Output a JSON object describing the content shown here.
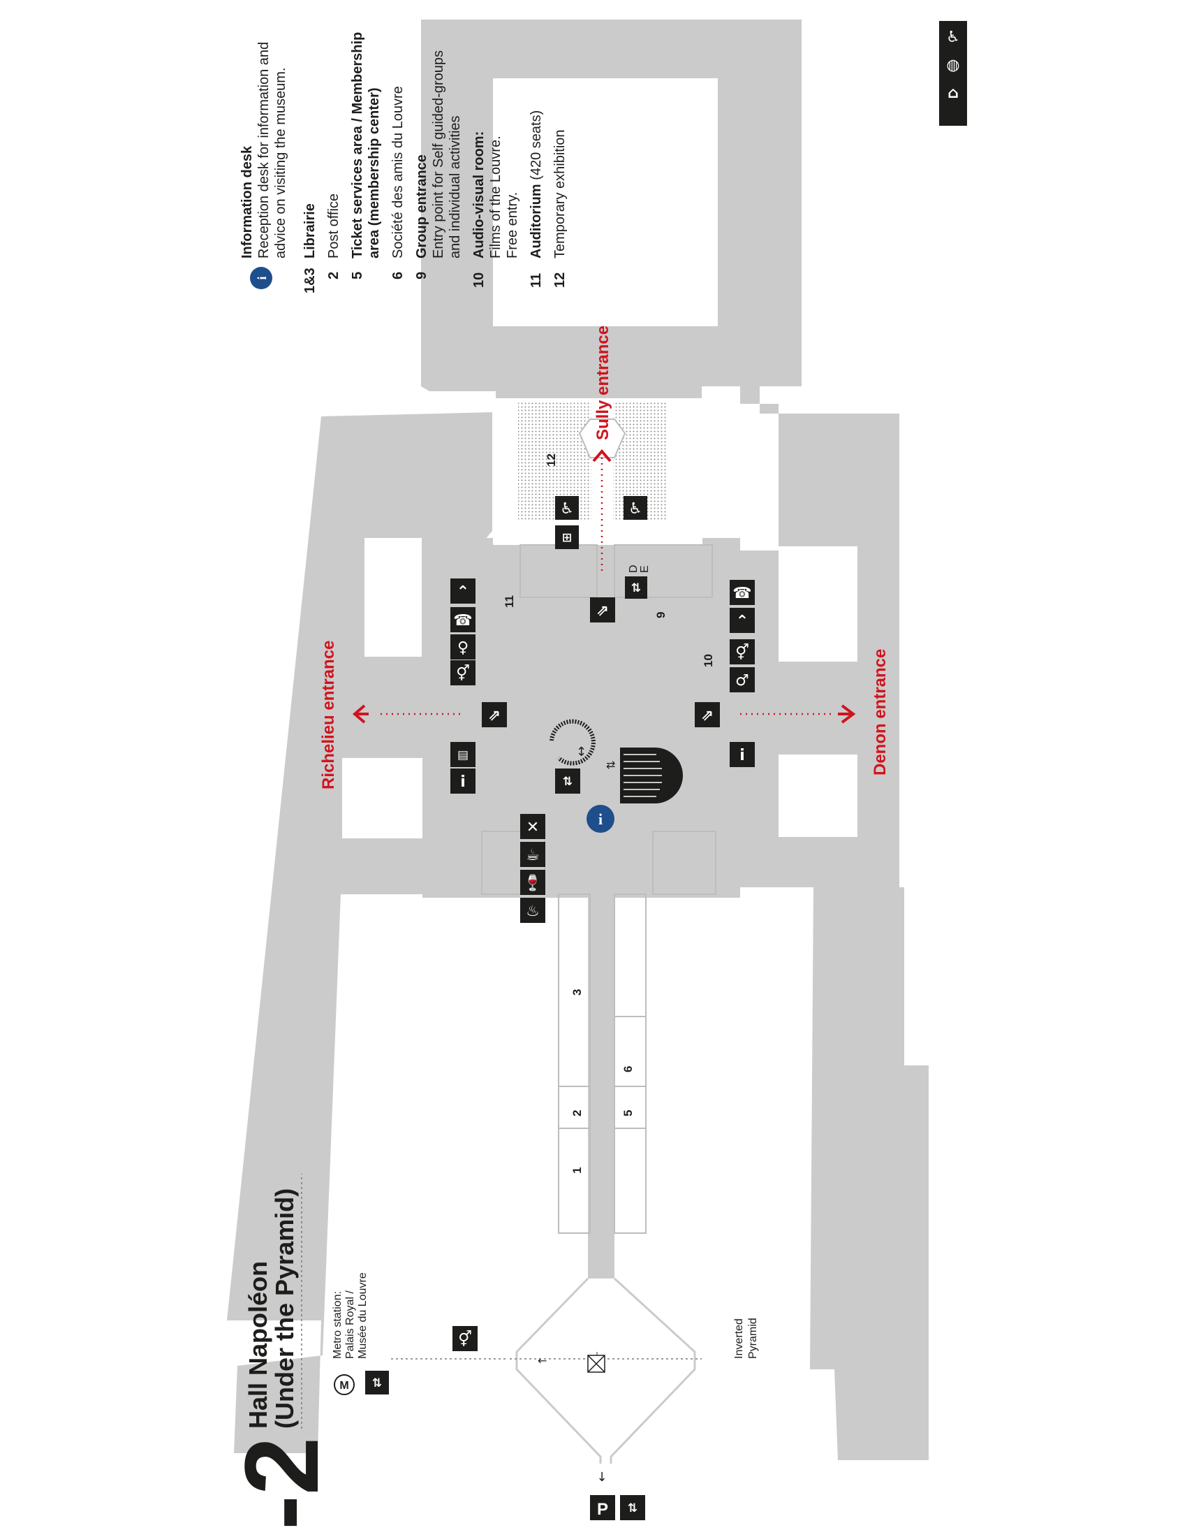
{
  "level": {
    "number": "-2",
    "name": "Hall Napoléon",
    "subtitle": "(Under the Pyramid)"
  },
  "colors": {
    "building": "#cbcbcb",
    "accent_red": "#d0141e",
    "info_blue": "#1f4e8c",
    "icon_dark": "#1d1d1b",
    "exhibition_dots": "#8a8a8a"
  },
  "entrances": {
    "richelieu": "Richelieu entrance",
    "denon": "Denon entrance",
    "sully": "Sully entrance"
  },
  "labels": {
    "metro": "Metro station:",
    "metro_line2": "Palais Royal /",
    "metro_line3": "Musée du Louvre",
    "metro_symbol": "M",
    "inverted_1": "Inverted",
    "inverted_2": "Pyramid",
    "parking": "P",
    "elevator_d": "D",
    "elevator_e": "E",
    "info_symbol": "i"
  },
  "rooms": [
    "1",
    "2",
    "3",
    "5",
    "6",
    "9",
    "10",
    "11",
    "12"
  ],
  "legend": [
    {
      "num": "",
      "title": "Information desk",
      "desc": [
        "Reception desk for information and",
        "advice on visiting the museum."
      ],
      "icon": "info-icon"
    },
    {
      "num": "1&3",
      "title": "Librairie",
      "desc": []
    },
    {
      "num": "2",
      "title": "",
      "desc": [
        "Post office"
      ]
    },
    {
      "num": "5",
      "title": "Ticket services area / Membership",
      "title2": "area (membership center)",
      "desc": []
    },
    {
      "num": "6",
      "title": "",
      "desc": [
        "Société des amis du Louvre"
      ]
    },
    {
      "num": "9",
      "title": "Group entrance",
      "desc": [
        "Entry point for Self guided-groups",
        "and individual activities"
      ]
    },
    {
      "num": "10",
      "title": "Audio-visual room:",
      "desc": [
        "Films of the Louvre.",
        "Free entry."
      ]
    },
    {
      "num": "11",
      "title": "Auditorium",
      "title_suffix": " (420 seats)",
      "desc": []
    },
    {
      "num": "12",
      "title": "",
      "desc": [
        "Temporary exhibition"
      ]
    }
  ],
  "icons": [
    "restroom-icon",
    "phone-icon",
    "cloakroom-icon",
    "escalator-icon",
    "elevator-icon",
    "restaurant-icon",
    "cafe-icon",
    "wine-icon",
    "info-point-icon",
    "accessibility-icon",
    "parking-icon",
    "stairs-icon",
    "inverted-pyramid-icon",
    "gift-icon"
  ]
}
